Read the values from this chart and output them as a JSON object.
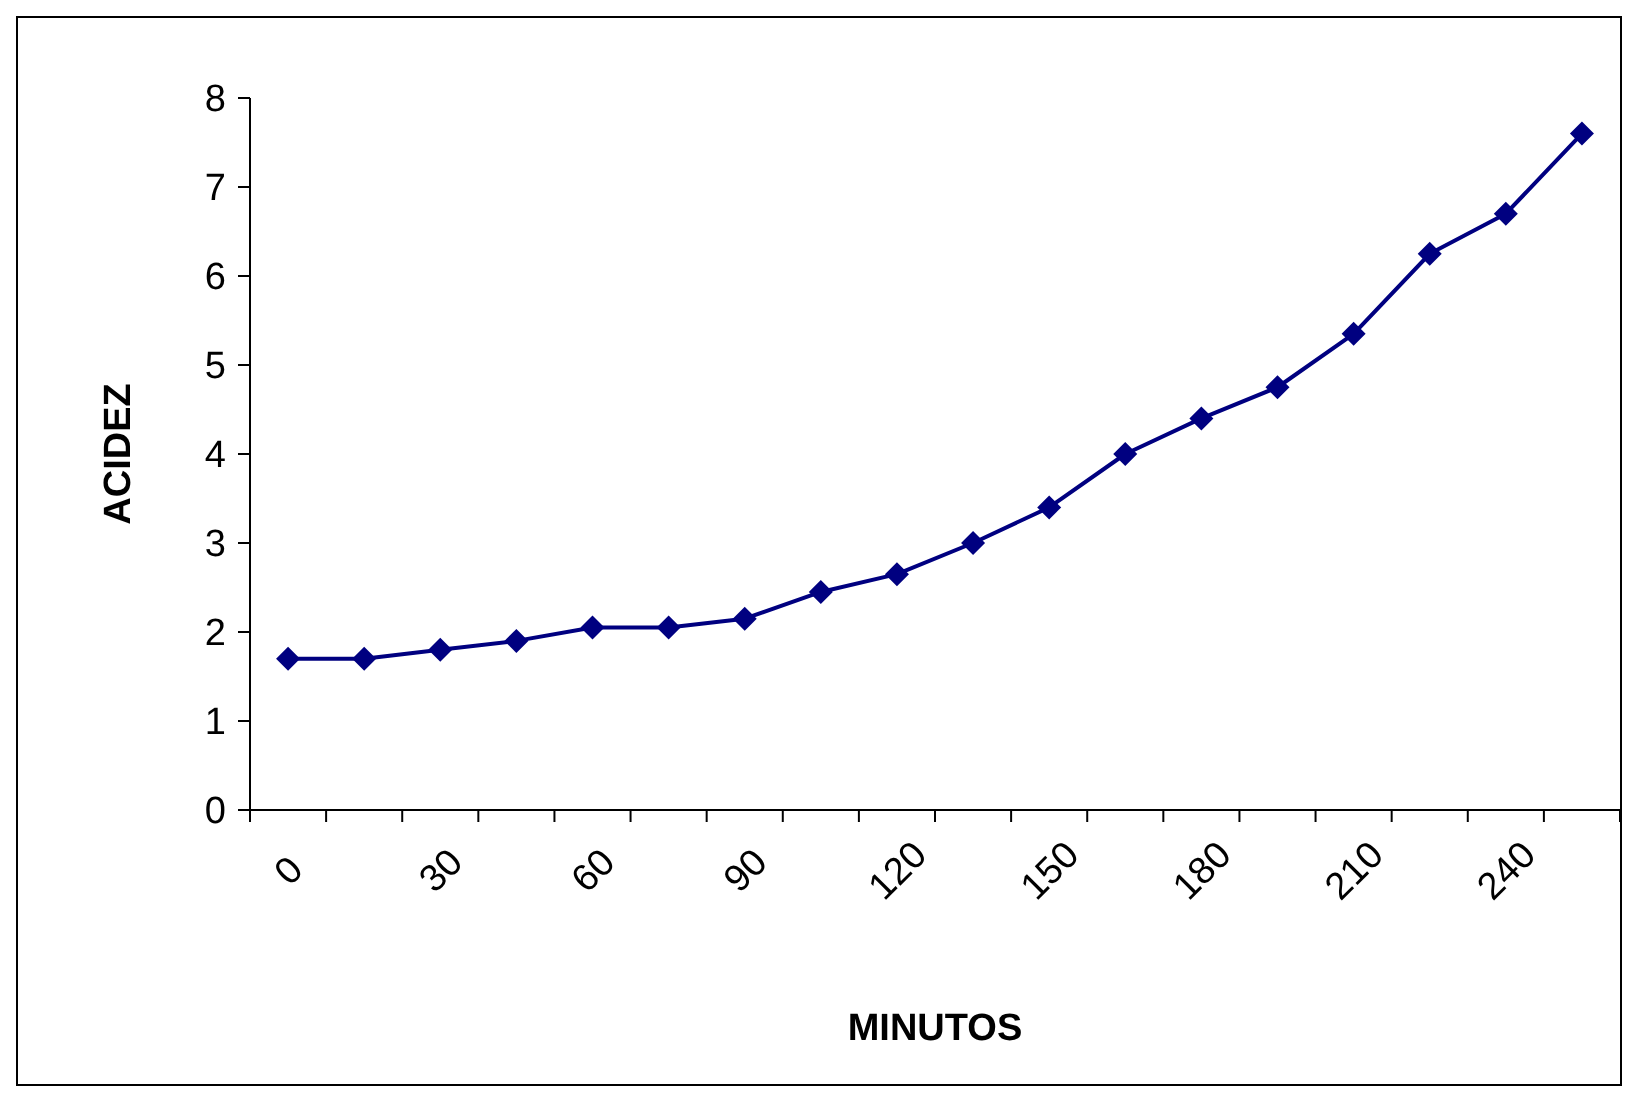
{
  "chart_data": {
    "type": "line",
    "xlabel": "MINUTOS",
    "ylabel": "ACIDEZ",
    "categories": [
      "0",
      null,
      "30",
      null,
      "60",
      null,
      "90",
      null,
      "120",
      null,
      "150",
      null,
      "180",
      null,
      "210",
      null,
      "240",
      null
    ],
    "series": [
      {
        "color": "#000080",
        "values": [
          1.7,
          1.7,
          1.8,
          1.9,
          2.05,
          2.05,
          2.15,
          2.45,
          2.65,
          3.0,
          3.4,
          4.0,
          4.4,
          4.75,
          5.35,
          6.25,
          6.7,
          7.6
        ]
      }
    ],
    "ylim": [
      0,
      8
    ],
    "yticks": [
      0,
      1,
      2,
      3,
      4,
      5,
      6,
      7,
      8
    ],
    "grid": false,
    "marker": "diamond",
    "line_style": "solid"
  }
}
